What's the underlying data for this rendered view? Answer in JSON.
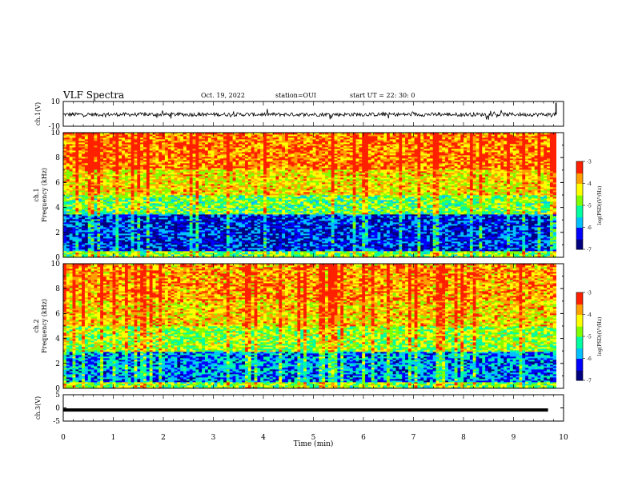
{
  "header": {
    "title": "VLF Spectra",
    "date": "Oct. 19, 2022",
    "station": "station=OUI",
    "start": "start UT =  22: 30: 0"
  },
  "chart_data": [
    {
      "type": "line",
      "panel": "waveform-ch1",
      "ylabel": "ch.1(V)",
      "ylim": [
        -10,
        10
      ],
      "yticks": [
        "10",
        "-10"
      ],
      "series": [
        {
          "values_note_free": true,
          "level": -0.5,
          "noise_amplitude": 1.5,
          "color": "#000000"
        }
      ]
    },
    {
      "type": "heatmap",
      "panel": "spectrogram-ch1",
      "ylabel_line1": "ch.1",
      "ylabel_line2": "Frequency (kHz)",
      "ylim": [
        0,
        10
      ],
      "yticks": [
        "0",
        "2",
        "4",
        "6",
        "8",
        "10"
      ],
      "xlim": [
        0,
        9.85
      ],
      "colorbar": {
        "label": "log(PSD)(V²/Hz)",
        "range": [
          -7,
          -3
        ],
        "ticks": [
          "-3",
          "-4",
          "-5",
          "-6",
          "-7"
        ]
      },
      "bands": [
        {
          "f": [
            0,
            0.5
          ],
          "level": -4.8
        },
        {
          "f": [
            0.5,
            3.5
          ],
          "level": -6.3
        },
        {
          "f": [
            3.5,
            5.0
          ],
          "level": -4.9
        },
        {
          "f": [
            5.0,
            7.0
          ],
          "level": -4.2
        },
        {
          "f": [
            7.0,
            10.0
          ],
          "level": -3.6
        }
      ]
    },
    {
      "type": "heatmap",
      "panel": "spectrogram-ch2",
      "ylabel_line1": "ch.2",
      "ylabel_line2": "Frequency (kHz)",
      "ylim": [
        0,
        10
      ],
      "yticks": [
        "0",
        "2",
        "4",
        "6",
        "8",
        "10"
      ],
      "xlim": [
        0,
        9.85
      ],
      "colorbar": {
        "label": "log(PSD)(V²/Hz)",
        "range": [
          -7,
          -3
        ],
        "ticks": [
          "-3",
          "-4",
          "-5",
          "-6",
          "-7"
        ]
      },
      "bands": [
        {
          "f": [
            0,
            0.5
          ],
          "level": -4.8
        },
        {
          "f": [
            0.5,
            3.0
          ],
          "level": -5.9
        },
        {
          "f": [
            3.0,
            5.0
          ],
          "level": -4.7
        },
        {
          "f": [
            5.0,
            7.0
          ],
          "level": -4.1
        },
        {
          "f": [
            7.0,
            10.0
          ],
          "level": -3.8
        }
      ]
    },
    {
      "type": "line",
      "panel": "waveform-ch3",
      "ylabel": "ch.3(V)",
      "ylim": [
        -5,
        5
      ],
      "yticks": [
        "5",
        "0",
        "-5"
      ],
      "series": [
        {
          "level": -0.8,
          "color": "#000000"
        }
      ]
    }
  ],
  "xaxis": {
    "label": "Time (min)",
    "range": [
      0,
      10
    ],
    "ticks": [
      "0",
      "1",
      "2",
      "3",
      "4",
      "5",
      "6",
      "7",
      "8",
      "9",
      "10"
    ]
  },
  "colors": {
    "scale": [
      "#000080",
      "#0000ff",
      "#00c0ff",
      "#00ffa0",
      "#80ff00",
      "#ffff00",
      "#ffa000",
      "#ff2000",
      "#ffd0d0"
    ]
  }
}
